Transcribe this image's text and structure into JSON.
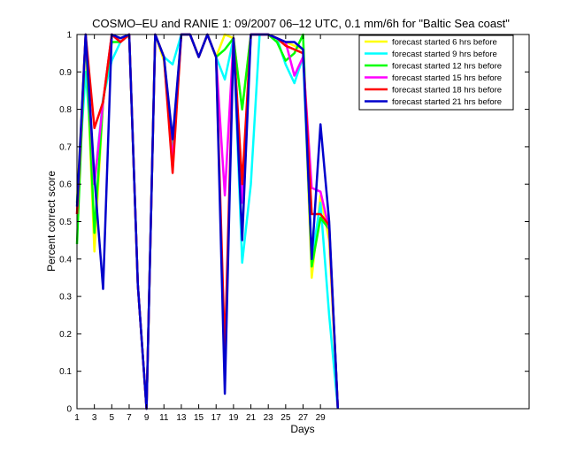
{
  "chart_data": {
    "type": "line",
    "title": "COSMO–EU and RANIE 1: 09/2007 06–12 UTC, 0.1 mm/6h for \"Baltic Sea coast\"",
    "xlabel": "Days",
    "ylabel": "Percent correct score",
    "xlim": [
      1,
      53
    ],
    "ylim": [
      0,
      1
    ],
    "x_ticks": [
      1,
      3,
      5,
      7,
      9,
      11,
      13,
      15,
      17,
      19,
      21,
      23,
      25,
      27,
      29
    ],
    "y_ticks": [
      0,
      0.1,
      0.2,
      0.3,
      0.4,
      0.5,
      0.6,
      0.7,
      0.8,
      0.9,
      1
    ],
    "y_tick_labels": [
      "0",
      "0.1",
      "0.2",
      "0.3",
      "0.4",
      "0.5",
      "0.6",
      "0.7",
      "0.8",
      "0.9",
      "1"
    ],
    "grid": false,
    "legend_position": "top-right",
    "x": [
      1,
      2,
      3,
      4,
      5,
      6,
      7,
      8,
      9,
      10,
      11,
      12,
      13,
      14,
      15,
      16,
      17,
      18,
      19,
      20,
      21,
      22,
      23,
      24,
      25,
      26,
      27,
      28,
      29,
      30,
      31
    ],
    "series": [
      {
        "name": "forecast started  6 hrs before",
        "color": "#ffff00",
        "values": [
          0.55,
          1.0,
          0.42,
          0.82,
          1.0,
          0.98,
          1.0,
          0.33,
          0.0,
          1.0,
          0.93,
          0.7,
          1.0,
          1.0,
          0.94,
          1.0,
          0.94,
          1.0,
          0.99,
          0.8,
          1.0,
          1.0,
          1.0,
          0.99,
          0.98,
          0.97,
          0.96,
          0.35,
          0.57,
          0.45,
          0.0
        ]
      },
      {
        "name": "forecast started  9 hrs before",
        "color": "#00ffff",
        "values": [
          0.55,
          0.9,
          0.6,
          0.83,
          0.93,
          0.98,
          1.0,
          0.33,
          0.0,
          1.0,
          0.94,
          0.92,
          1.0,
          1.0,
          0.94,
          1.0,
          0.94,
          0.88,
          0.99,
          0.39,
          0.6,
          1.0,
          1.0,
          0.99,
          0.92,
          0.87,
          0.94,
          0.4,
          0.55,
          0.25,
          0.0
        ]
      },
      {
        "name": "forecast started 12 hrs before",
        "color": "#00ff00",
        "values": [
          0.44,
          1.0,
          0.47,
          0.82,
          0.98,
          0.98,
          1.0,
          0.33,
          0.0,
          1.0,
          0.94,
          0.7,
          1.0,
          1.0,
          0.94,
          1.0,
          0.94,
          0.96,
          0.99,
          0.8,
          1.0,
          1.0,
          1.0,
          0.98,
          0.93,
          0.95,
          1.0,
          0.38,
          0.51,
          0.48,
          0.0
        ]
      },
      {
        "name": "forecast started 15 hrs before",
        "color": "#ff00ff",
        "values": [
          0.52,
          1.0,
          0.6,
          0.82,
          1.0,
          0.98,
          1.0,
          0.33,
          0.0,
          1.0,
          0.94,
          0.66,
          1.0,
          1.0,
          0.94,
          1.0,
          0.94,
          0.57,
          0.99,
          0.55,
          1.0,
          1.0,
          1.0,
          0.99,
          0.98,
          0.89,
          0.94,
          0.59,
          0.58,
          0.48,
          0.0
        ]
      },
      {
        "name": "forecast started 18 hrs before",
        "color": "#ff0000",
        "values": [
          0.52,
          1.0,
          0.75,
          0.82,
          1.0,
          0.98,
          1.0,
          0.33,
          0.0,
          1.0,
          0.94,
          0.63,
          1.0,
          1.0,
          0.94,
          1.0,
          0.94,
          0.15,
          0.99,
          0.6,
          1.0,
          1.0,
          1.0,
          0.99,
          0.97,
          0.96,
          0.95,
          0.52,
          0.52,
          0.49,
          0.0
        ]
      },
      {
        "name": "forecast started 21 hrs before",
        "color": "#0000cc",
        "values": [
          0.54,
          1.0,
          0.62,
          0.32,
          1.0,
          0.99,
          1.0,
          0.33,
          0.0,
          1.0,
          0.94,
          0.72,
          1.0,
          1.0,
          0.94,
          1.0,
          0.94,
          0.04,
          0.99,
          0.45,
          1.0,
          1.0,
          1.0,
          0.99,
          0.98,
          0.98,
          0.96,
          0.4,
          0.76,
          0.5,
          0.0
        ]
      }
    ]
  }
}
